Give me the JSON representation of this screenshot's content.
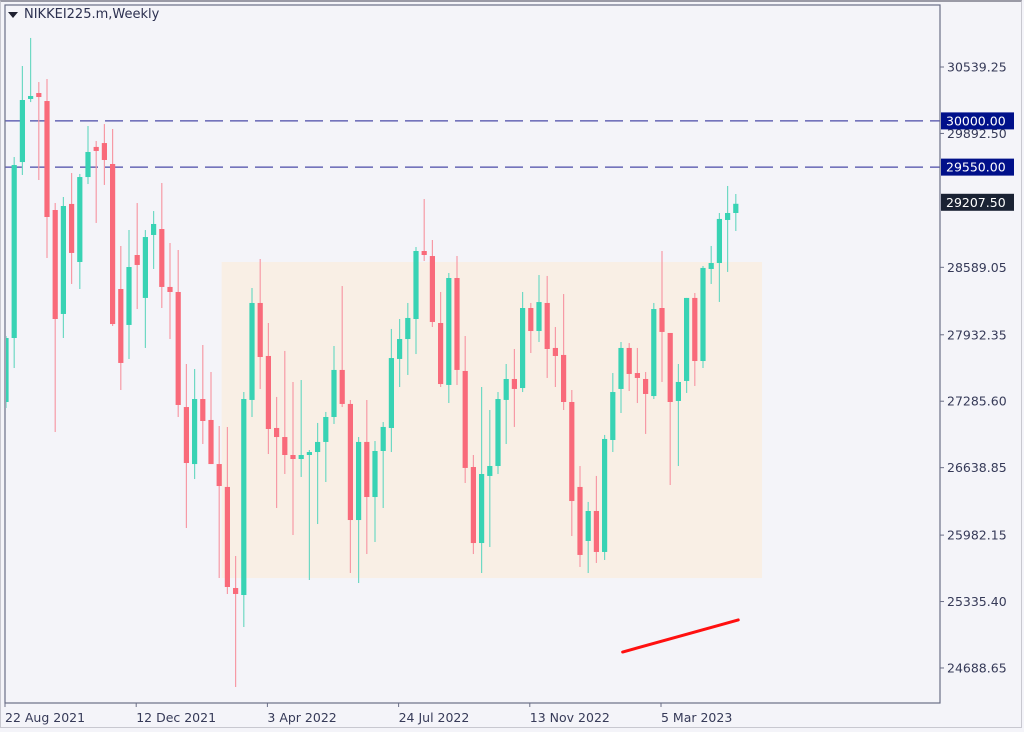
{
  "header": {
    "title": "NIKKEI225.m,Weekly",
    "menu_icon": "triangle-down-icon"
  },
  "colors": {
    "bull": "#38d3b4",
    "bear": "#f96a7a",
    "bull_wick": "#6fd9c4",
    "bear_wick": "#f79aa6",
    "hline": "#4a4aa8",
    "hline_label_bg": "#00108a",
    "current_label_bg": "#1a2233",
    "zone_fill": "#f9efe5",
    "trendline": "#ff1010"
  },
  "chart_data": {
    "type": "candlestick",
    "title": "NIKKEI225.m,Weekly",
    "timeframe": "Weekly",
    "ylim": [
      24200,
      31150
    ],
    "y_ticks": [
      "30539.25",
      "29892.50",
      "28589.05",
      "27932.35",
      "27285.60",
      "26638.85",
      "25982.15",
      "25335.40",
      "24688.65"
    ],
    "y_tick_values": [
      30539.25,
      29892.5,
      28589.05,
      27932.35,
      27285.6,
      26638.85,
      25982.15,
      25335.4,
      24688.65
    ],
    "x_ticks": [
      {
        "label": "22 Aug 2021",
        "index": 0
      },
      {
        "label": "12 Dec 2021",
        "index": 16
      },
      {
        "label": "3 Apr 2022",
        "index": 32
      },
      {
        "label": "24 Jul 2022",
        "index": 48
      },
      {
        "label": "13 Nov 2022",
        "index": 64
      },
      {
        "label": "5 Mar 2023",
        "index": 80
      }
    ],
    "horizontal_lines": [
      {
        "value": 30000.0,
        "label": "30000.00",
        "style": "dashed"
      },
      {
        "value": 29550.0,
        "label": "29550.00",
        "style": "dashed"
      }
    ],
    "current_price": {
      "value": 29207.5,
      "label": "29207.50"
    },
    "zone": {
      "from_index": 26.3,
      "to_index": 92.2,
      "low": 25564,
      "high": 28641
    },
    "trendline": [
      {
        "index": 75.2,
        "value": 24844
      },
      {
        "index": 89.3,
        "value": 25156
      }
    ],
    "ohlc": [
      [
        27278,
        27901,
        27920,
        27220
      ],
      [
        27901,
        29585,
        29663,
        27609
      ],
      [
        29614,
        30218,
        30549,
        29488
      ],
      [
        30228,
        30257,
        30822,
        30198
      ],
      [
        30286,
        30247,
        30393,
        29439
      ],
      [
        30208,
        29079,
        30422,
        28680
      ],
      [
        29147,
        28086,
        29215,
        26986
      ],
      [
        28135,
        29186,
        29274,
        27901
      ],
      [
        29206,
        28729,
        29507,
        28427
      ],
      [
        28641,
        29468,
        29498,
        28378
      ],
      [
        29468,
        29712,
        29965,
        29400
      ],
      [
        29761,
        29722,
        29819,
        29021
      ],
      [
        29799,
        29634,
        29984,
        29391
      ],
      [
        29595,
        28037,
        29936,
        28018
      ],
      [
        28378,
        27658,
        28797,
        27395
      ],
      [
        28028,
        28592,
        28952,
        27697
      ],
      [
        28709,
        28612,
        29215,
        28183
      ],
      [
        28291,
        28884,
        28952,
        27804
      ],
      [
        28904,
        29011,
        29137,
        28573
      ],
      [
        28962,
        28398,
        29410,
        28193
      ],
      [
        28398,
        28349,
        28826,
        27891
      ],
      [
        28349,
        27249,
        28758,
        27132
      ],
      [
        27229,
        26684,
        27648,
        26051
      ],
      [
        26674,
        27307,
        27599,
        26528
      ],
      [
        27307,
        27093,
        27833,
        26869
      ],
      [
        27103,
        26674,
        27570,
        26674
      ],
      [
        26674,
        26460,
        27044,
        25565
      ],
      [
        26451,
        25477,
        27035,
        25409
      ],
      [
        25467,
        25409,
        25779,
        24504
      ],
      [
        25399,
        27307,
        27375,
        25088
      ],
      [
        27298,
        28242,
        28388,
        27132
      ],
      [
        28242,
        27716,
        28670,
        27405
      ],
      [
        27726,
        27015,
        28047,
        26772
      ],
      [
        27025,
        26937,
        27327,
        26246
      ],
      [
        26937,
        26762,
        27775,
        26577
      ],
      [
        26762,
        26723,
        27473,
        25983
      ],
      [
        26723,
        26762,
        27492,
        26548
      ],
      [
        26762,
        26791,
        26811,
        25545
      ],
      [
        26791,
        26889,
        27074,
        26090
      ],
      [
        26889,
        27132,
        27181,
        26499
      ],
      [
        27132,
        27590,
        27823,
        27064
      ],
      [
        27590,
        27259,
        28407,
        27229
      ],
      [
        27259,
        26129,
        27298,
        25613
      ],
      [
        26129,
        26889,
        26937,
        25516
      ],
      [
        26889,
        26353,
        27298,
        25798
      ],
      [
        26353,
        26801,
        26898,
        25915
      ],
      [
        26801,
        27035,
        27083,
        26246
      ],
      [
        27025,
        27706,
        27989,
        26791
      ],
      [
        27697,
        27891,
        28086,
        27424
      ],
      [
        27891,
        28096,
        28242,
        27541
      ],
      [
        28086,
        28748,
        28787,
        27745
      ],
      [
        28748,
        28709,
        29254,
        28651
      ],
      [
        28699,
        28057,
        28855,
        28008
      ],
      [
        28047,
        27453,
        28349,
        27424
      ],
      [
        27444,
        28485,
        28534,
        27268
      ],
      [
        28485,
        27590,
        28699,
        27444
      ],
      [
        27580,
        26636,
        27920,
        26490
      ],
      [
        26645,
        25905,
        26762,
        25798
      ],
      [
        25905,
        26577,
        27424,
        25613
      ],
      [
        26558,
        26655,
        27200,
        25866
      ],
      [
        26655,
        27307,
        27375,
        26577
      ],
      [
        27298,
        27502,
        27648,
        26869
      ],
      [
        27502,
        27405,
        27794,
        27035
      ],
      [
        27414,
        28193,
        28349,
        27375
      ],
      [
        28193,
        27969,
        28242,
        27755
      ],
      [
        27969,
        28251,
        28514,
        27862
      ],
      [
        28242,
        27794,
        28505,
        27512
      ],
      [
        27804,
        27726,
        28008,
        27424
      ],
      [
        27736,
        27278,
        28329,
        27200
      ],
      [
        27278,
        26314,
        27395,
        25974
      ],
      [
        26451,
        25789,
        26655,
        25672
      ],
      [
        25925,
        26217,
        26305,
        25613
      ],
      [
        26217,
        25818,
        26558,
        25711
      ],
      [
        25818,
        26918,
        26957,
        25740
      ],
      [
        26908,
        27375,
        27560,
        26791
      ],
      [
        27405,
        27804,
        27862,
        27171
      ],
      [
        27804,
        27551,
        27852,
        27385
      ],
      [
        27560,
        27512,
        27804,
        27268
      ],
      [
        27502,
        27356,
        27570,
        26967
      ],
      [
        27336,
        28183,
        28242,
        27307
      ],
      [
        28193,
        27960,
        28748,
        27473
      ],
      [
        27950,
        27278,
        27950,
        26470
      ],
      [
        27288,
        27473,
        27648,
        26655
      ],
      [
        27483,
        28291,
        28291,
        27366
      ],
      [
        28291,
        27677,
        28339,
        27434
      ],
      [
        27677,
        28583,
        28602,
        27609
      ],
      [
        28573,
        28631,
        28797,
        28427
      ],
      [
        28631,
        29060,
        29118,
        28252
      ],
      [
        29050,
        29118,
        29381,
        28544
      ],
      [
        29118,
        29207.5,
        29303,
        28943
      ]
    ]
  }
}
